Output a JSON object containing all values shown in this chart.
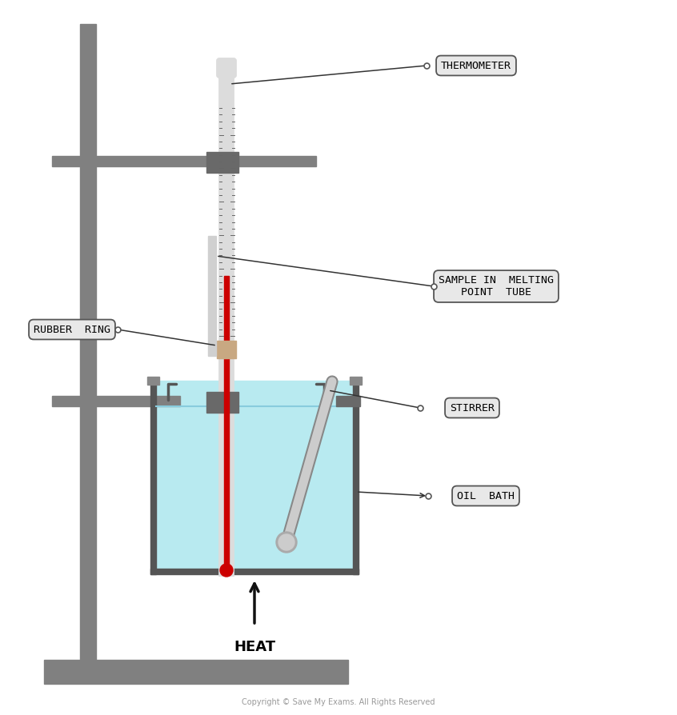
{
  "bg_color": "#ffffff",
  "stand_color": "#808080",
  "clamp_color": "#696969",
  "thermometer_body_color": "#dcdcdc",
  "thermometer_liquid_color": "#cc0000",
  "rubber_ring_color": "#c8a882",
  "bath_fill_color": "#b8eaf0",
  "stirrer_color": "#b0b0b0",
  "label_bg_color": "#e8e8e8",
  "label_border_color": "#555555",
  "copyright_text": "Copyright © Save My Exams. All Rights Reserved",
  "labels": {
    "thermometer": "THERMOMETER",
    "rubber_ring": "RUBBER  RING",
    "sample": "SAMPLE IN  MELTING\nPOINT  TUBE",
    "stirrer": "STIRRER",
    "oil_bath": "OIL  BATH",
    "heat": "HEAT"
  }
}
